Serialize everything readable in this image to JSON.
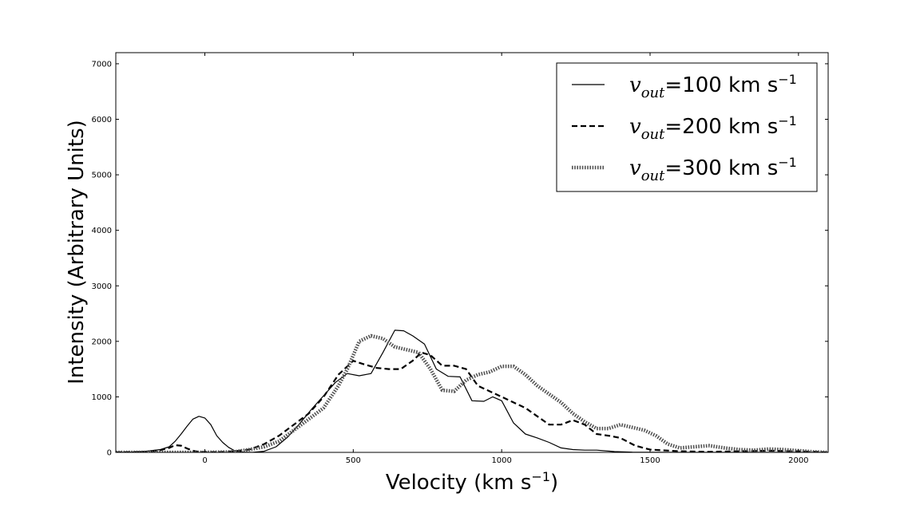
{
  "chart_data": {
    "type": "line",
    "title": "",
    "xlabel": "Velocity  (km s",
    "xlabel_sup": "−1",
    "xlabel_tail": ")",
    "ylabel": "Intensity (Arbitrary Units)",
    "xlim": [
      -300,
      2100
    ],
    "ylim": [
      0,
      7200
    ],
    "xticks": [
      0,
      500,
      1000,
      1500,
      2000
    ],
    "yticks": [
      0,
      1000,
      2000,
      3000,
      4000,
      5000,
      6000,
      7000
    ],
    "grid": false,
    "legend_position": "top-right",
    "series": [
      {
        "name": "=100 km s",
        "legend_var": "v",
        "legend_sub": "out",
        "legend_eq": "=100 km s",
        "legend_sup": "−1",
        "style": "solid",
        "color": "#000000",
        "x": [
          -300,
          -250,
          -200,
          -150,
          -120,
          -100,
          -80,
          -60,
          -40,
          -20,
          0,
          20,
          40,
          60,
          80,
          100,
          130,
          160,
          200,
          240,
          280,
          320,
          360,
          400,
          440,
          480,
          520,
          560,
          600,
          640,
          670,
          700,
          740,
          780,
          820,
          860,
          900,
          940,
          970,
          1000,
          1040,
          1080,
          1120,
          1160,
          1200,
          1240,
          1280,
          1320,
          1380,
          1440,
          1500,
          1600,
          1700,
          1800,
          1900,
          2000,
          2100
        ],
        "y": [
          0,
          5,
          20,
          50,
          100,
          200,
          330,
          470,
          600,
          650,
          620,
          500,
          300,
          180,
          90,
          30,
          5,
          0,
          20,
          100,
          280,
          520,
          780,
          1020,
          1260,
          1420,
          1380,
          1420,
          1800,
          2200,
          2190,
          2100,
          1950,
          1500,
          1370,
          1360,
          930,
          920,
          1000,
          930,
          530,
          330,
          260,
          180,
          80,
          50,
          40,
          40,
          15,
          5,
          2,
          0,
          0,
          0,
          0,
          0,
          0
        ]
      },
      {
        "name": "=200 km s",
        "legend_var": "v",
        "legend_sub": "out",
        "legend_eq": "=200 km s",
        "legend_sup": "−1",
        "style": "dashed",
        "color": "#000000",
        "x": [
          -300,
          -200,
          -150,
          -120,
          -100,
          -80,
          -60,
          -40,
          -20,
          0,
          50,
          100,
          150,
          200,
          250,
          300,
          350,
          400,
          450,
          500,
          540,
          580,
          620,
          660,
          700,
          730,
          760,
          800,
          840,
          880,
          920,
          960,
          1000,
          1040,
          1080,
          1120,
          1160,
          1200,
          1240,
          1280,
          1320,
          1360,
          1400,
          1450,
          1500,
          1600,
          1700,
          1800,
          1900,
          2000,
          2100
        ],
        "y": [
          0,
          10,
          40,
          80,
          130,
          120,
          70,
          30,
          10,
          5,
          5,
          20,
          50,
          150,
          300,
          500,
          700,
          1000,
          1400,
          1650,
          1580,
          1520,
          1500,
          1500,
          1650,
          1800,
          1750,
          1560,
          1560,
          1500,
          1200,
          1100,
          1000,
          900,
          800,
          650,
          500,
          500,
          580,
          500,
          330,
          300,
          260,
          120,
          50,
          20,
          10,
          20,
          30,
          20,
          0
        ]
      },
      {
        "name": "=300 km s",
        "legend_var": "v",
        "legend_sub": "out",
        "legend_eq": "=300 km s",
        "legend_sup": "−1",
        "style": "dotted-thick",
        "color": "#555555",
        "x": [
          -300,
          -200,
          -100,
          0,
          100,
          150,
          200,
          250,
          300,
          350,
          400,
          450,
          480,
          520,
          560,
          600,
          640,
          680,
          720,
          760,
          800,
          840,
          880,
          920,
          960,
          1000,
          1040,
          1080,
          1120,
          1160,
          1200,
          1240,
          1280,
          1320,
          1360,
          1400,
          1440,
          1480,
          1520,
          1560,
          1600,
          1650,
          1700,
          1750,
          1800,
          1850,
          1900,
          1950,
          2000,
          2050,
          2100
        ],
        "y": [
          0,
          0,
          0,
          0,
          10,
          50,
          100,
          200,
          400,
          600,
          800,
          1200,
          1500,
          2000,
          2100,
          2050,
          1900,
          1850,
          1800,
          1500,
          1120,
          1100,
          1300,
          1400,
          1450,
          1550,
          1550,
          1400,
          1200,
          1050,
          900,
          700,
          550,
          430,
          430,
          500,
          450,
          400,
          300,
          150,
          80,
          100,
          120,
          80,
          50,
          40,
          60,
          50,
          30,
          10,
          0
        ]
      }
    ]
  }
}
